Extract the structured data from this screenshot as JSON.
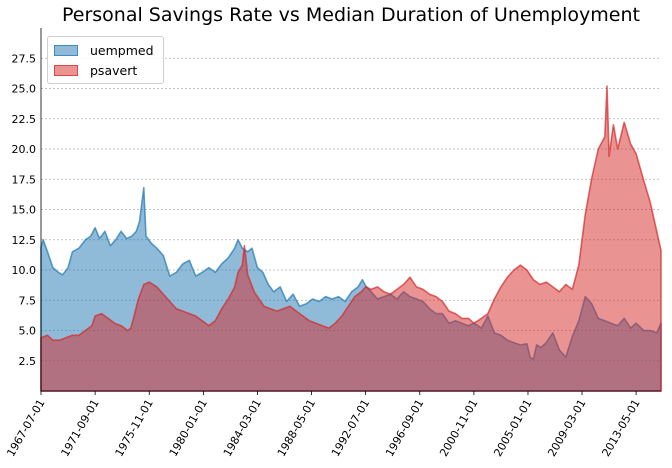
{
  "chart_data": {
    "type": "area",
    "title": "Personal Savings Rate vs Median Duration of Unemployment",
    "xlabel": "",
    "ylabel": "",
    "x_range": [
      "1967-07-01",
      "2015-04-01"
    ],
    "ylim": [
      0,
      30
    ],
    "yticks": [
      2.5,
      5.0,
      7.5,
      10.0,
      12.5,
      15.0,
      17.5,
      20.0,
      22.5,
      25.0,
      27.5
    ],
    "ytick_labels": [
      "2.5",
      "5.0",
      "7.5",
      "10.0",
      "12.5",
      "15.0",
      "17.5",
      "20.0",
      "22.5",
      "25.0",
      "27.5"
    ],
    "xtick_labels": [
      "1967-07-01",
      "1971-09-01",
      "1975-11-01",
      "1980-01-01",
      "1984-03-01",
      "1988-05-01",
      "1992-07-01",
      "1996-09-01",
      "2000-11-01",
      "2005-01-01",
      "2009-03-01",
      "2013-05-01"
    ],
    "grid": "horizontal dashed",
    "legend_position": "top-left",
    "series": [
      {
        "name": "uempmed",
        "color": "#1f77b4",
        "points": [
          [
            "1967-07-01",
            11.9
          ],
          [
            "1967-09-01",
            12.5
          ],
          [
            "1968-01-01",
            11.5
          ],
          [
            "1968-06-01",
            10.2
          ],
          [
            "1968-11-01",
            9.8
          ],
          [
            "1969-03-01",
            9.6
          ],
          [
            "1969-08-01",
            10.2
          ],
          [
            "1969-12-01",
            11.5
          ],
          [
            "1970-06-01",
            11.8
          ],
          [
            "1970-12-01",
            12.5
          ],
          [
            "1971-05-01",
            12.8
          ],
          [
            "1971-09-01",
            13.5
          ],
          [
            "1972-01-01",
            12.6
          ],
          [
            "1972-06-01",
            13.2
          ],
          [
            "1972-11-01",
            12.0
          ],
          [
            "1973-04-01",
            12.5
          ],
          [
            "1973-09-01",
            13.2
          ],
          [
            "1974-02-01",
            12.6
          ],
          [
            "1974-07-01",
            12.8
          ],
          [
            "1974-11-01",
            13.2
          ],
          [
            "1975-02-01",
            14.0
          ],
          [
            "1975-06-01",
            16.8
          ],
          [
            "1975-08-01",
            12.8
          ],
          [
            "1976-01-01",
            12.2
          ],
          [
            "1976-06-01",
            11.8
          ],
          [
            "1976-12-01",
            11.2
          ],
          [
            "1977-06-01",
            9.5
          ],
          [
            "1977-12-01",
            9.8
          ],
          [
            "1978-06-01",
            10.5
          ],
          [
            "1978-12-01",
            10.8
          ],
          [
            "1979-06-01",
            9.5
          ],
          [
            "1979-12-01",
            9.8
          ],
          [
            "1980-06-01",
            10.2
          ],
          [
            "1980-12-01",
            9.8
          ],
          [
            "1981-06-01",
            10.5
          ],
          [
            "1981-12-01",
            11.0
          ],
          [
            "1982-06-01",
            11.8
          ],
          [
            "1982-09-01",
            12.5
          ],
          [
            "1983-01-01",
            11.8
          ],
          [
            "1983-06-01",
            11.5
          ],
          [
            "1983-10-01",
            11.8
          ],
          [
            "1984-03-01",
            10.2
          ],
          [
            "1984-08-01",
            9.8
          ],
          [
            "1985-01-01",
            8.8
          ],
          [
            "1985-06-01",
            8.2
          ],
          [
            "1985-12-01",
            8.6
          ],
          [
            "1986-06-01",
            7.4
          ],
          [
            "1986-12-01",
            8.0
          ],
          [
            "1987-06-01",
            7.0
          ],
          [
            "1987-12-01",
            7.2
          ],
          [
            "1988-06-01",
            7.6
          ],
          [
            "1988-12-01",
            7.4
          ],
          [
            "1989-06-01",
            7.8
          ],
          [
            "1989-12-01",
            7.6
          ],
          [
            "1990-06-01",
            7.8
          ],
          [
            "1990-12-01",
            7.4
          ],
          [
            "1991-06-01",
            8.2
          ],
          [
            "1991-12-01",
            8.6
          ],
          [
            "1992-04-01",
            9.2
          ],
          [
            "1992-07-01",
            8.7
          ],
          [
            "1992-12-01",
            8.2
          ],
          [
            "1993-06-01",
            7.6
          ],
          [
            "1993-12-01",
            7.8
          ],
          [
            "1994-06-01",
            8.0
          ],
          [
            "1994-12-01",
            7.6
          ],
          [
            "1995-06-01",
            8.2
          ],
          [
            "1995-12-01",
            7.8
          ],
          [
            "1996-06-01",
            7.6
          ],
          [
            "1996-12-01",
            7.4
          ],
          [
            "1997-06-01",
            6.8
          ],
          [
            "1997-12-01",
            6.4
          ],
          [
            "1998-06-01",
            6.4
          ],
          [
            "1998-12-01",
            5.6
          ],
          [
            "1999-06-01",
            5.8
          ],
          [
            "1999-12-01",
            5.6
          ],
          [
            "2000-06-01",
            5.4
          ],
          [
            "2000-11-01",
            5.6
          ],
          [
            "2001-06-01",
            5.2
          ],
          [
            "2001-12-01",
            6.2
          ],
          [
            "2002-06-01",
            4.8
          ],
          [
            "2002-12-01",
            4.6
          ],
          [
            "2003-06-01",
            4.2
          ],
          [
            "2003-12-01",
            4.0
          ],
          [
            "2004-06-01",
            3.8
          ],
          [
            "2004-12-01",
            3.9
          ],
          [
            "2005-03-01",
            2.8
          ],
          [
            "2005-06-01",
            2.6
          ],
          [
            "2005-09-01",
            3.8
          ],
          [
            "2006-01-01",
            3.6
          ],
          [
            "2006-06-01",
            4.0
          ],
          [
            "2006-12-01",
            4.8
          ],
          [
            "2007-06-01",
            3.4
          ],
          [
            "2007-12-01",
            2.8
          ],
          [
            "2008-06-01",
            4.5
          ],
          [
            "2008-12-01",
            5.8
          ],
          [
            "2009-06-01",
            7.8
          ],
          [
            "2009-12-01",
            7.2
          ],
          [
            "2010-06-01",
            6.0
          ],
          [
            "2010-12-01",
            5.8
          ],
          [
            "2011-06-01",
            5.6
          ],
          [
            "2011-12-01",
            5.4
          ],
          [
            "2012-06-01",
            6.0
          ],
          [
            "2012-12-01",
            5.2
          ],
          [
            "2013-05-01",
            5.6
          ],
          [
            "2013-12-01",
            5.0
          ],
          [
            "2014-06-01",
            5.0
          ],
          [
            "2014-12-01",
            4.8
          ],
          [
            "2015-04-01",
            5.6
          ]
        ]
      },
      {
        "name": "psavert",
        "color": "#d62728",
        "points": [
          [
            "1967-07-01",
            4.4
          ],
          [
            "1968-01-01",
            4.6
          ],
          [
            "1968-06-01",
            4.2
          ],
          [
            "1968-12-01",
            4.2
          ],
          [
            "1969-06-01",
            4.4
          ],
          [
            "1969-12-01",
            4.6
          ],
          [
            "1970-06-01",
            4.6
          ],
          [
            "1970-12-01",
            5.0
          ],
          [
            "1971-06-01",
            5.4
          ],
          [
            "1971-09-01",
            6.2
          ],
          [
            "1972-03-01",
            6.4
          ],
          [
            "1972-09-01",
            6.0
          ],
          [
            "1973-03-01",
            5.6
          ],
          [
            "1973-09-01",
            5.4
          ],
          [
            "1974-03-01",
            5.0
          ],
          [
            "1974-06-01",
            5.2
          ],
          [
            "1974-09-01",
            6.2
          ],
          [
            "1975-01-01",
            7.6
          ],
          [
            "1975-06-01",
            8.8
          ],
          [
            "1975-11-01",
            9.0
          ],
          [
            "1976-06-01",
            8.6
          ],
          [
            "1976-12-01",
            8.0
          ],
          [
            "1977-06-01",
            7.4
          ],
          [
            "1977-12-01",
            6.8
          ],
          [
            "1978-06-01",
            6.6
          ],
          [
            "1978-12-01",
            6.4
          ],
          [
            "1979-06-01",
            6.2
          ],
          [
            "1979-12-01",
            5.8
          ],
          [
            "1980-06-01",
            5.4
          ],
          [
            "1980-12-01",
            5.8
          ],
          [
            "1981-06-01",
            6.8
          ],
          [
            "1981-12-01",
            7.6
          ],
          [
            "1982-06-01",
            8.6
          ],
          [
            "1982-09-01",
            9.8
          ],
          [
            "1983-01-01",
            10.4
          ],
          [
            "1983-03-01",
            12.0
          ],
          [
            "1983-06-01",
            9.6
          ],
          [
            "1983-12-01",
            8.2
          ],
          [
            "1984-03-01",
            7.8
          ],
          [
            "1984-09-01",
            7.0
          ],
          [
            "1985-03-01",
            6.8
          ],
          [
            "1985-09-01",
            6.6
          ],
          [
            "1986-03-01",
            6.8
          ],
          [
            "1986-09-01",
            7.0
          ],
          [
            "1987-03-01",
            6.6
          ],
          [
            "1987-09-01",
            6.2
          ],
          [
            "1988-03-01",
            5.8
          ],
          [
            "1988-09-01",
            5.6
          ],
          [
            "1989-03-01",
            5.4
          ],
          [
            "1989-09-01",
            5.2
          ],
          [
            "1990-03-01",
            5.6
          ],
          [
            "1990-09-01",
            6.2
          ],
          [
            "1991-03-01",
            7.0
          ],
          [
            "1991-09-01",
            7.8
          ],
          [
            "1992-03-01",
            8.2
          ],
          [
            "1992-07-01",
            8.6
          ],
          [
            "1992-12-01",
            8.4
          ],
          [
            "1993-06-01",
            8.6
          ],
          [
            "1993-12-01",
            8.2
          ],
          [
            "1994-06-01",
            8.0
          ],
          [
            "1994-12-01",
            8.4
          ],
          [
            "1995-06-01",
            8.8
          ],
          [
            "1995-12-01",
            9.4
          ],
          [
            "1996-06-01",
            8.6
          ],
          [
            "1996-12-01",
            8.4
          ],
          [
            "1997-06-01",
            8.0
          ],
          [
            "1997-12-01",
            7.8
          ],
          [
            "1998-06-01",
            7.4
          ],
          [
            "1998-12-01",
            6.6
          ],
          [
            "1999-06-01",
            6.4
          ],
          [
            "1999-12-01",
            6.0
          ],
          [
            "2000-06-01",
            6.0
          ],
          [
            "2000-11-01",
            5.6
          ],
          [
            "2001-06-01",
            6.0
          ],
          [
            "2001-12-01",
            6.4
          ],
          [
            "2002-06-01",
            7.6
          ],
          [
            "2002-12-01",
            8.6
          ],
          [
            "2003-06-01",
            9.4
          ],
          [
            "2003-12-01",
            10.0
          ],
          [
            "2004-06-01",
            10.4
          ],
          [
            "2004-12-01",
            10.0
          ],
          [
            "2005-06-01",
            9.2
          ],
          [
            "2005-12-01",
            8.8
          ],
          [
            "2006-06-01",
            9.0
          ],
          [
            "2006-12-01",
            8.6
          ],
          [
            "2007-06-01",
            8.2
          ],
          [
            "2007-12-01",
            8.8
          ],
          [
            "2008-06-01",
            8.4
          ],
          [
            "2008-09-01",
            9.4
          ],
          [
            "2008-12-01",
            10.4
          ],
          [
            "2009-06-01",
            14.6
          ],
          [
            "2009-12-01",
            17.6
          ],
          [
            "2010-06-01",
            20.0
          ],
          [
            "2010-12-01",
            21.0
          ],
          [
            "2011-02-01",
            25.2
          ],
          [
            "2011-04-01",
            19.4
          ],
          [
            "2011-08-01",
            22.0
          ],
          [
            "2011-12-01",
            20.0
          ],
          [
            "2012-06-01",
            22.2
          ],
          [
            "2012-12-01",
            20.4
          ],
          [
            "2013-05-01",
            19.6
          ],
          [
            "2013-12-01",
            17.4
          ],
          [
            "2014-06-01",
            15.6
          ],
          [
            "2014-12-01",
            13.2
          ],
          [
            "2015-04-01",
            11.6
          ]
        ]
      }
    ]
  }
}
